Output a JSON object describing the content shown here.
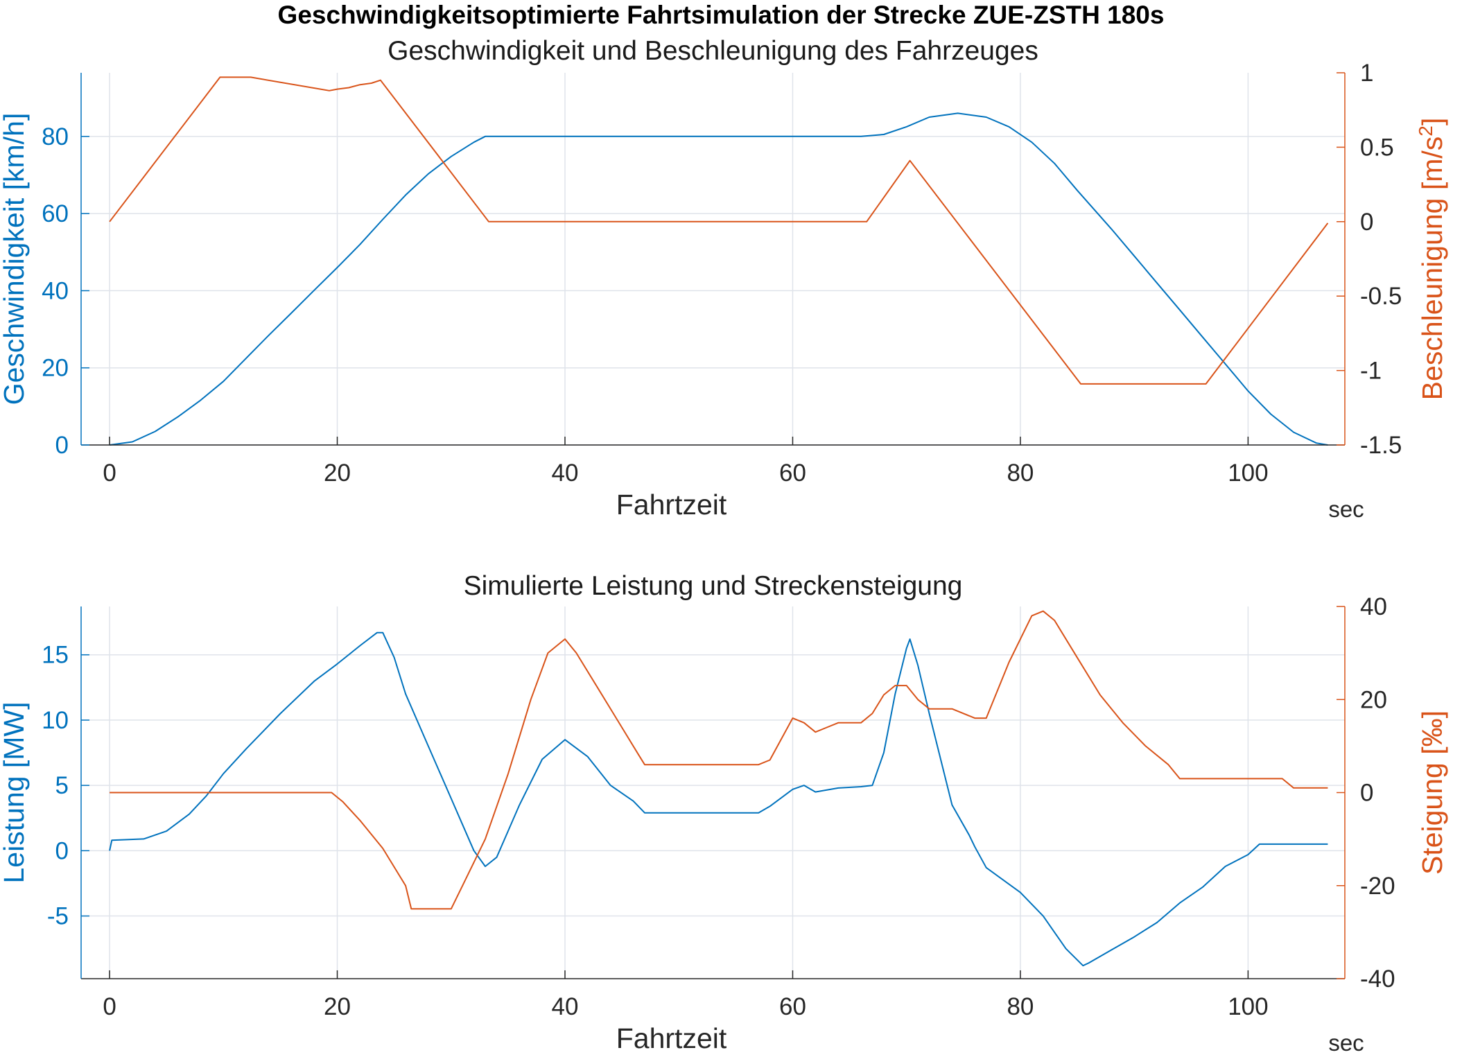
{
  "suptitle": "Geschwindigkeitsoptimierte Fahrtsimulation der Strecke ZUE-ZSTH 180s",
  "colors": {
    "left": "#0072BD",
    "right": "#D95319",
    "axes": "#262626",
    "grid": "#dfe3ea"
  },
  "chart_data": [
    {
      "type": "line",
      "title": "Geschwindigkeit und Beschleunigung des Fahrzeuges",
      "xlabel": "Fahrtzeit",
      "xunit": "sec",
      "ylabel": "Geschwindigkeit [km/h]",
      "ylabel_right_prefix": "Beschleunigung [m/s",
      "ylabel_right_sup": "2",
      "ylabel_right_suffix": "]",
      "xlim": [
        -2.5,
        108.5
      ],
      "ylim": [
        0,
        96.5
      ],
      "ylim_right": [
        -1.5,
        1.0
      ],
      "xticks": [
        0,
        20,
        40,
        60,
        80,
        100
      ],
      "xticklabels": [
        "0",
        "20",
        "40",
        "60",
        "80",
        "100"
      ],
      "yticks": [
        0,
        20,
        40,
        60,
        80
      ],
      "yticklabels": [
        "0",
        "20",
        "40",
        "60",
        "80"
      ],
      "yticks_right": [
        -1.5,
        -1,
        -0.5,
        0,
        0.5,
        1
      ],
      "yticklabels_right": [
        "-1.5",
        "-1",
        "-0.5",
        "0",
        "0.5",
        "1"
      ],
      "grid": true,
      "series": [
        {
          "axis": "left",
          "x": [
            0,
            2,
            4,
            6,
            8,
            10,
            12,
            14,
            16,
            18,
            20,
            22,
            24,
            26,
            28,
            30,
            32,
            33,
            35,
            40,
            50,
            60,
            66,
            68,
            70,
            72,
            74.5,
            77,
            79,
            81,
            83,
            85,
            88,
            90,
            92,
            94,
            96,
            98,
            100,
            102,
            104,
            106,
            107
          ],
          "y": [
            0,
            0.8,
            3.5,
            7.3,
            11.6,
            16.5,
            22.5,
            28.5,
            34.3,
            40.2,
            46,
            52,
            58.5,
            64.8,
            70.3,
            74.8,
            78.5,
            80,
            80,
            80,
            80,
            80,
            80,
            80.5,
            82.5,
            85,
            86,
            85,
            82.5,
            78.5,
            73,
            66,
            56,
            49,
            42,
            35,
            28,
            21,
            14,
            8,
            3.3,
            0.5,
            0
          ]
        },
        {
          "axis": "right",
          "x": [
            0,
            9.7,
            12.4,
            19.3,
            20,
            21,
            22,
            23,
            23.8,
            33.3,
            66.5,
            70.3,
            85.3,
            96.3,
            107
          ],
          "y": [
            0,
            0.97,
            0.97,
            0.88,
            0.89,
            0.9,
            0.92,
            0.93,
            0.95,
            0,
            0,
            0.41,
            -1.09,
            -1.09,
            -0.01
          ]
        }
      ]
    },
    {
      "type": "line",
      "title": "Simulierte Leistung und Streckensteigung",
      "xlabel": "Fahrtzeit",
      "xunit": "sec",
      "ylabel": "Leistung [MW]",
      "ylabel_right": "Steigung [‰]",
      "xlim": [
        -2.5,
        108.5
      ],
      "ylim": [
        -9.8,
        18.7
      ],
      "ylim_right": [
        -40,
        40
      ],
      "xticks": [
        0,
        20,
        40,
        60,
        80,
        100
      ],
      "xticklabels": [
        "0",
        "20",
        "40",
        "60",
        "80",
        "100"
      ],
      "yticks": [
        -5,
        0,
        5,
        10,
        15
      ],
      "yticklabels": [
        "-5",
        "0",
        "5",
        "10",
        "15"
      ],
      "yticks_right": [
        -40,
        -20,
        0,
        20,
        40
      ],
      "yticklabels_right": [
        "-40",
        "-20",
        "0",
        "20",
        "40"
      ],
      "grid": true,
      "series": [
        {
          "axis": "left",
          "x": [
            0,
            0.2,
            3,
            5,
            7,
            8.5,
            10,
            12,
            15,
            18,
            20,
            22,
            23.5,
            24,
            25,
            26,
            28,
            30,
            31,
            32,
            33,
            34,
            35,
            36,
            38,
            40,
            42,
            44,
            46,
            47,
            50,
            55,
            57,
            58,
            60,
            61,
            62,
            64,
            66,
            67,
            68,
            69,
            70,
            70.3,
            71,
            72,
            74,
            75.5,
            76,
            77,
            80,
            82,
            84,
            85.5,
            86,
            88,
            90,
            92,
            94,
            96,
            98,
            100,
            101,
            107
          ],
          "y": [
            0,
            0.8,
            0.9,
            1.5,
            2.8,
            4.2,
            5.9,
            7.8,
            10.5,
            13,
            14.3,
            15.7,
            16.7,
            16.7,
            14.8,
            12,
            8,
            4,
            2,
            0,
            -1.2,
            -0.5,
            1.5,
            3.5,
            7,
            8.5,
            7.2,
            5,
            3.8,
            2.9,
            2.9,
            2.9,
            2.9,
            3.4,
            4.7,
            5,
            4.5,
            4.8,
            4.9,
            5,
            7.5,
            12,
            15.5,
            16.2,
            14.2,
            10.5,
            3.5,
            1.2,
            0.3,
            -1.3,
            -3.2,
            -5,
            -7.5,
            -8.8,
            -8.6,
            -7.6,
            -6.6,
            -5.5,
            -4,
            -2.8,
            -1.2,
            -0.3,
            0.5,
            0.5
          ]
        },
        {
          "axis": "right",
          "x": [
            0,
            19.5,
            20.5,
            22,
            24,
            26,
            26.5,
            30,
            31,
            33,
            35,
            37,
            38.5,
            40,
            41,
            43,
            45,
            46.5,
            47,
            57,
            58,
            60,
            61,
            62,
            63,
            64,
            66,
            67,
            68,
            69,
            70,
            71,
            72,
            74,
            76,
            77,
            79,
            81,
            82,
            83,
            85,
            87,
            89,
            91,
            93,
            94,
            103,
            104,
            107
          ],
          "y": [
            0,
            0,
            -2,
            -6,
            -12,
            -20,
            -25,
            -25,
            -20,
            -10,
            4,
            20,
            30,
            33,
            30,
            22,
            14,
            8,
            6,
            6,
            7,
            16,
            15,
            13,
            14,
            15,
            15,
            17,
            21,
            23,
            23,
            20,
            18,
            18,
            16,
            16,
            28,
            38,
            39,
            37,
            29,
            21,
            15,
            10,
            6,
            3,
            3,
            1,
            1
          ]
        }
      ]
    }
  ]
}
